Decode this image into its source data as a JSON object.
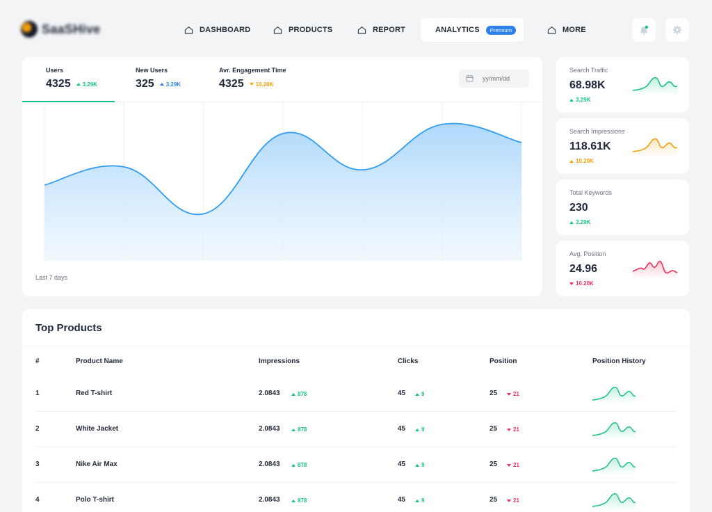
{
  "app": {
    "logo_text": "SaaSHive",
    "logo_accent": "Hive"
  },
  "nav": {
    "items": [
      {
        "label": "DASHBOARD",
        "icon": "home-icon"
      },
      {
        "label": "PRODUCTS",
        "icon": "home-icon"
      },
      {
        "label": "REPORT",
        "icon": "home-icon"
      },
      {
        "label": "ANALYTICS",
        "icon": "trending-up-icon",
        "badge": "Premium",
        "active": true
      },
      {
        "label": "MORE",
        "icon": "home-icon"
      }
    ],
    "notification_icon": "bell-icon",
    "settings_icon": "gear-icon"
  },
  "overview": {
    "metrics": [
      {
        "label": "Users",
        "value": "4325",
        "delta": "3.29K",
        "trend": "up",
        "color": "#16c47f"
      },
      {
        "label": "New Users",
        "value": "325",
        "delta": "3.29K",
        "trend": "up",
        "color": "#2f80ed"
      },
      {
        "label": "Avr. Engagement Time",
        "value": "4325",
        "delta": "10.20K",
        "trend": "down",
        "color": "#f59e0b"
      }
    ],
    "date_placeholder": "yy/mm/dd",
    "footer": "Last 7 days"
  },
  "chart_data": {
    "type": "area",
    "x": [
      0,
      1,
      2,
      3,
      4,
      5,
      6
    ],
    "values": [
      50,
      62,
      31,
      84,
      60,
      90,
      78
    ],
    "ylim": [
      0,
      100
    ],
    "grid": true,
    "line_color": "#2f9cf4",
    "fill_color": "#bfe0fb"
  },
  "stats": [
    {
      "label": "Search Traffic",
      "value": "68.98K",
      "delta": "3.29K",
      "trend": "up",
      "color": "#16c47f"
    },
    {
      "label": "Search Impressions",
      "value": "118.61K",
      "delta": "10.20K",
      "trend": "down",
      "color": "#f59e0b"
    },
    {
      "label": "Total Keywords",
      "value": "230",
      "delta": "3.29K",
      "trend": "up",
      "color": "#16c47f"
    },
    {
      "label": "Avg. Position",
      "value": "24.96",
      "delta": "10.20K",
      "trend": "down",
      "color": "#ef2f5a"
    }
  ],
  "products": {
    "title": "Top Products",
    "columns": [
      "#",
      "Product Name",
      "Impressions",
      "Clicks",
      "Position",
      "Position History"
    ],
    "rows": [
      {
        "rank": "1",
        "name": "Red T-shirt",
        "impressions": "2.0843",
        "impressions_delta": "878",
        "clicks": "45",
        "clicks_delta": "9",
        "position": "25",
        "position_delta": "21"
      },
      {
        "rank": "2",
        "name": "White Jacket",
        "impressions": "2.0843",
        "impressions_delta": "878",
        "clicks": "45",
        "clicks_delta": "9",
        "position": "25",
        "position_delta": "21"
      },
      {
        "rank": "3",
        "name": "Nike Air Max",
        "impressions": "2.0843",
        "impressions_delta": "878",
        "clicks": "45",
        "clicks_delta": "9",
        "position": "25",
        "position_delta": "21"
      },
      {
        "rank": "4",
        "name": "Polo T-shirt",
        "impressions": "2.0843",
        "impressions_delta": "878",
        "clicks": "45",
        "clicks_delta": "9",
        "position": "25",
        "position_delta": "21"
      }
    ]
  }
}
